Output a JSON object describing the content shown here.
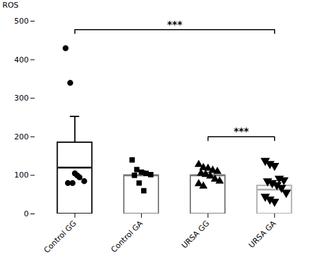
{
  "chart_data": {
    "type": "bar",
    "categories": [
      "Control GG",
      "Control GA",
      "URSA GG",
      "URSA GA"
    ],
    "values": [
      185,
      100,
      100,
      73
    ],
    "errors_up": [
      68,
      12,
      8,
      14
    ],
    "mean_lines": [
      120,
      100,
      100,
      63
    ],
    "colors": [
      "black",
      "#777777",
      "#777777",
      "#aaaaaa"
    ],
    "ylabel": "ROS",
    "ylim": [
      0,
      500
    ],
    "yticks": [
      0,
      100,
      200,
      300,
      400,
      500
    ],
    "grid": false,
    "points": [
      {
        "category": "Control GG",
        "values": [
          430,
          340,
          105,
          95,
          85,
          80,
          80,
          100
        ],
        "marker": "circle",
        "color": "black"
      },
      {
        "category": "Control GA",
        "values": [
          140,
          115,
          108,
          105,
          102,
          100,
          80,
          60
        ],
        "marker": "square",
        "color": "black"
      },
      {
        "category": "URSA GG",
        "values": [
          128,
          120,
          118,
          113,
          110,
          105,
          102,
          98,
          90,
          85,
          78,
          72
        ],
        "marker": "triangle",
        "color": "black"
      },
      {
        "category": "URSA GA",
        "values": [
          138,
          130,
          125,
          92,
          88,
          85,
          80,
          75,
          68,
          55,
          45,
          38,
          32
        ],
        "marker": "triangle-down",
        "color": "black"
      }
    ],
    "annotations": [
      {
        "text": "***",
        "x1": "Control GG",
        "x2": "URSA GA",
        "y": 478
      },
      {
        "text": "***",
        "x1": "URSA GG",
        "x2": "URSA GA",
        "y": 200
      }
    ]
  }
}
